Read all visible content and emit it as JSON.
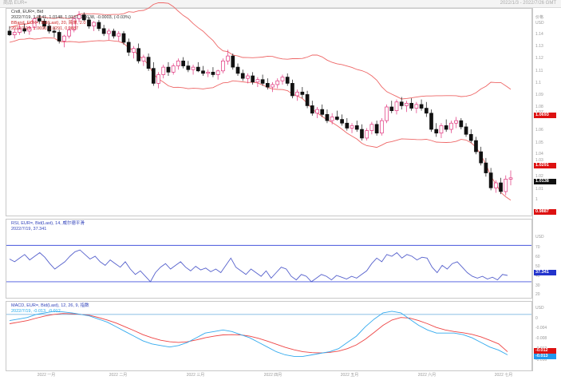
{
  "window": {
    "left_title": "商品 EUR=",
    "right_title": "2022/1/3 - 2022/7/26 GMT"
  },
  "main_panel": {
    "legend": [
      {
        "text": "Cndl, EUR=, Bid",
        "color": "#333333"
      },
      {
        "text": "2022/7/19, 1.0141, 1.0148, 1.0137, 1.0138, -0.0003, (-0.03%)",
        "color": "#333333"
      },
      {
        "text": "BBand, EUR=, Bid(Last), 20, 简单, 2.0",
        "color": "#cc2222"
      },
      {
        "text": "2022/7/19, 1.0693, 1.0291, 0.9887",
        "color": "#cc2222"
      }
    ],
    "axis_header": "价格",
    "axis_unit": "USD",
    "axis_labels": [
      "1.14",
      "1.13",
      "1.12",
      "1.11",
      "1.1",
      "1.09",
      "1.08",
      "1.07",
      "1.06",
      "1.05",
      "1.04",
      "1.03",
      "1.02",
      "1.01",
      "1"
    ],
    "price_tags": [
      {
        "text": "1.0693",
        "color": "#dd1111",
        "price": 1.0693
      },
      {
        "text": "1.0291",
        "color": "#dd1111",
        "price": 1.0291
      },
      {
        "text": "1.0138",
        "color": "#111111",
        "price": 1.0138
      },
      {
        "text": "0.9887",
        "color": "#dd1111",
        "price": 0.9887
      }
    ]
  },
  "rsi_panel": {
    "legend": [
      {
        "text": "RSI, EUR=, Bid(Last), 14, 威尔德平滑",
        "color": "#3344bb"
      },
      {
        "text": "2022/7/19, 37.341",
        "color": "#3344bb"
      }
    ],
    "axis_unit": "USD",
    "axis_labels": [
      "70",
      "60",
      "50",
      "40",
      "30",
      "20"
    ],
    "value_tag": {
      "text": "37.341",
      "color": "#2233cc"
    },
    "upper_line": 70,
    "lower_line": 30
  },
  "macd_panel": {
    "legend": [
      {
        "text": "MACD, EUR=, Bid(Last), 12, 26, 9, 指数",
        "color": "#3344bb"
      },
      {
        "text": "2022/7/19, -0.013, -0.012",
        "color": "#22aaee"
      }
    ],
    "axis_unit": "USD",
    "axis_labels": [
      "0",
      "-0.004",
      "-0.008",
      "-0.012",
      "-0.016"
    ],
    "value_tags": [
      {
        "text": "-0.012",
        "color": "#dd1111"
      },
      {
        "text": "-0.013",
        "color": "#2299ee"
      }
    ]
  },
  "x_axis": {
    "labels": [
      "2022 一月",
      "2022 二月",
      "2022 三月",
      "2022 四月",
      "2022 五月",
      "2022 六月",
      "2022 七月"
    ]
  },
  "chart_data": [
    {
      "type": "candlestick",
      "title": "Cndl, EUR=, Bid",
      "ylim": [
        0.985,
        1.148
      ],
      "series": [
        {
          "name": "Candles",
          "values": [
            [
              1.132,
              1.136,
              1.128,
              1.129
            ],
            [
              1.129,
              1.134,
              1.126,
              1.131
            ],
            [
              1.131,
              1.137,
              1.129,
              1.134
            ],
            [
              1.134,
              1.138,
              1.13,
              1.132
            ],
            [
              1.132,
              1.136,
              1.129,
              1.135
            ],
            [
              1.135,
              1.144,
              1.133,
              1.142
            ],
            [
              1.142,
              1.145,
              1.138,
              1.14
            ],
            [
              1.14,
              1.142,
              1.134,
              1.136
            ],
            [
              1.136,
              1.139,
              1.13,
              1.132
            ],
            [
              1.132,
              1.135,
              1.127,
              1.131
            ],
            [
              1.131,
              1.133,
              1.122,
              1.124
            ],
            [
              1.124,
              1.129,
              1.119,
              1.128
            ],
            [
              1.128,
              1.136,
              1.126,
              1.133
            ],
            [
              1.133,
              1.144,
              1.131,
              1.142
            ],
            [
              1.142,
              1.148,
              1.139,
              1.145
            ],
            [
              1.145,
              1.147,
              1.14,
              1.141
            ],
            [
              1.141,
              1.143,
              1.134,
              1.136
            ],
            [
              1.136,
              1.14,
              1.132,
              1.139
            ],
            [
              1.139,
              1.141,
              1.132,
              1.134
            ],
            [
              1.134,
              1.137,
              1.128,
              1.13
            ],
            [
              1.13,
              1.134,
              1.125,
              1.132
            ],
            [
              1.132,
              1.134,
              1.126,
              1.128
            ],
            [
              1.128,
              1.132,
              1.124,
              1.13
            ],
            [
              1.13,
              1.132,
              1.121,
              1.123
            ],
            [
              1.123,
              1.126,
              1.112,
              1.115
            ],
            [
              1.115,
              1.12,
              1.11,
              1.118
            ],
            [
              1.118,
              1.122,
              1.106,
              1.108
            ],
            [
              1.108,
              1.113,
              1.104,
              1.111
            ],
            [
              1.111,
              1.114,
              1.1,
              1.102
            ],
            [
              1.102,
              1.107,
              1.088,
              1.09
            ],
            [
              1.09,
              1.099,
              1.086,
              1.097
            ],
            [
              1.097,
              1.105,
              1.094,
              1.103
            ],
            [
              1.103,
              1.107,
              1.096,
              1.099
            ],
            [
              1.099,
              1.106,
              1.097,
              1.104
            ],
            [
              1.104,
              1.11,
              1.101,
              1.108
            ],
            [
              1.108,
              1.111,
              1.102,
              1.104
            ],
            [
              1.104,
              1.108,
              1.099,
              1.101
            ],
            [
              1.101,
              1.105,
              1.097,
              1.103
            ],
            [
              1.103,
              1.107,
              1.099,
              1.1
            ],
            [
              1.1,
              1.104,
              1.096,
              1.098
            ],
            [
              1.098,
              1.101,
              1.095,
              1.099
            ],
            [
              1.099,
              1.103,
              1.095,
              1.097
            ],
            [
              1.097,
              1.101,
              1.093,
              1.1
            ],
            [
              1.1,
              1.11,
              1.098,
              1.108
            ],
            [
              1.108,
              1.117,
              1.105,
              1.112
            ],
            [
              1.112,
              1.114,
              1.101,
              1.103
            ],
            [
              1.103,
              1.106,
              1.096,
              1.098
            ],
            [
              1.098,
              1.101,
              1.092,
              1.094
            ],
            [
              1.094,
              1.098,
              1.09,
              1.096
            ],
            [
              1.096,
              1.099,
              1.089,
              1.091
            ],
            [
              1.091,
              1.095,
              1.087,
              1.093
            ],
            [
              1.093,
              1.097,
              1.088,
              1.09
            ],
            [
              1.09,
              1.094,
              1.085,
              1.087
            ],
            [
              1.087,
              1.091,
              1.083,
              1.089
            ],
            [
              1.089,
              1.094,
              1.086,
              1.092
            ],
            [
              1.092,
              1.097,
              1.089,
              1.095
            ],
            [
              1.095,
              1.098,
              1.088,
              1.09
            ],
            [
              1.09,
              1.093,
              1.078,
              1.08
            ],
            [
              1.08,
              1.085,
              1.076,
              1.083
            ],
            [
              1.083,
              1.087,
              1.078,
              1.081
            ],
            [
              1.081,
              1.084,
              1.07,
              1.072
            ],
            [
              1.072,
              1.076,
              1.064,
              1.066
            ],
            [
              1.066,
              1.071,
              1.062,
              1.069
            ],
            [
              1.069,
              1.073,
              1.063,
              1.065
            ],
            [
              1.065,
              1.069,
              1.058,
              1.06
            ],
            [
              1.06,
              1.066,
              1.057,
              1.063
            ],
            [
              1.063,
              1.068,
              1.06,
              1.061
            ],
            [
              1.061,
              1.065,
              1.056,
              1.058
            ],
            [
              1.058,
              1.062,
              1.052,
              1.054
            ],
            [
              1.054,
              1.058,
              1.05,
              1.056
            ],
            [
              1.056,
              1.06,
              1.051,
              1.053
            ],
            [
              1.053,
              1.057,
              1.044,
              1.046
            ],
            [
              1.046,
              1.054,
              1.044,
              1.052
            ],
            [
              1.052,
              1.059,
              1.049,
              1.057
            ],
            [
              1.057,
              1.06,
              1.048,
              1.05
            ],
            [
              1.05,
              1.062,
              1.048,
              1.06
            ],
            [
              1.06,
              1.073,
              1.058,
              1.071
            ],
            [
              1.071,
              1.076,
              1.066,
              1.068
            ],
            [
              1.068,
              1.077,
              1.065,
              1.075
            ],
            [
              1.075,
              1.079,
              1.069,
              1.072
            ],
            [
              1.072,
              1.076,
              1.067,
              1.074
            ],
            [
              1.074,
              1.078,
              1.068,
              1.07
            ],
            [
              1.07,
              1.075,
              1.066,
              1.073
            ],
            [
              1.073,
              1.077,
              1.068,
              1.07
            ],
            [
              1.07,
              1.075,
              1.063,
              1.066
            ],
            [
              1.066,
              1.069,
              1.051,
              1.053
            ],
            [
              1.053,
              1.058,
              1.047,
              1.05
            ],
            [
              1.05,
              1.058,
              1.046,
              1.056
            ],
            [
              1.056,
              1.061,
              1.051,
              1.053
            ],
            [
              1.053,
              1.06,
              1.05,
              1.058
            ],
            [
              1.058,
              1.063,
              1.054,
              1.06
            ],
            [
              1.06,
              1.062,
              1.053,
              1.055
            ],
            [
              1.055,
              1.058,
              1.047,
              1.049
            ],
            [
              1.049,
              1.053,
              1.042,
              1.044
            ],
            [
              1.044,
              1.047,
              1.033,
              1.035
            ],
            [
              1.035,
              1.039,
              1.024,
              1.026
            ],
            [
              1.026,
              1.03,
              1.015,
              1.018
            ],
            [
              1.018,
              1.022,
              1.004,
              1.006
            ],
            [
              1.006,
              1.012,
              1.002,
              1.01
            ],
            [
              1.01,
              1.014,
              1.001,
              1.003
            ],
            [
              1.003,
              1.016,
              1.0,
              1.013
            ],
            [
              1.013,
              1.02,
              1.008,
              1.014
            ]
          ]
        }
      ],
      "bands": {
        "upper_line_color": "#ee5555",
        "lower_line_color": "#ee5555"
      }
    },
    {
      "type": "line",
      "title": "RSI, EUR=, Bid(Last), 14",
      "ylim": [
        15,
        80
      ],
      "series": [
        {
          "name": "RSI",
          "values": [
            55,
            52,
            56,
            60,
            54,
            58,
            62,
            57,
            50,
            44,
            48,
            52,
            58,
            63,
            65,
            60,
            55,
            58,
            52,
            48,
            54,
            50,
            46,
            52,
            44,
            38,
            42,
            36,
            30,
            40,
            46,
            50,
            44,
            48,
            52,
            46,
            42,
            47,
            43,
            45,
            41,
            44,
            40,
            48,
            56,
            46,
            42,
            38,
            44,
            40,
            36,
            42,
            34,
            40,
            46,
            44,
            36,
            32,
            38,
            36,
            30,
            34,
            38,
            36,
            32,
            37,
            35,
            33,
            36,
            34,
            38,
            42,
            50,
            56,
            52,
            60,
            58,
            62,
            56,
            60,
            58,
            54,
            57,
            56,
            46,
            40,
            48,
            44,
            50,
            52,
            46,
            40,
            36,
            34,
            36,
            33,
            35,
            32,
            38,
            37
          ]
        }
      ]
    },
    {
      "type": "line",
      "title": "MACD, EUR=, Bid(Last), 12, 26, 9",
      "ylim": [
        -0.0175,
        0.0015
      ],
      "series": [
        {
          "name": "MACD",
          "values": [
            -0.002,
            -0.0015,
            -0.001,
            0,
            0.0005,
            0.001,
            0.0008,
            0.0005,
            0,
            -0.0005,
            -0.0015,
            -0.0025,
            -0.004,
            -0.0055,
            -0.007,
            -0.0085,
            -0.0095,
            -0.01,
            -0.0105,
            -0.01,
            -0.009,
            -0.0075,
            -0.006,
            -0.0055,
            -0.005,
            -0.0055,
            -0.0065,
            -0.0075,
            -0.009,
            -0.0105,
            -0.012,
            -0.013,
            -0.0135,
            -0.0135,
            -0.013,
            -0.0125,
            -0.012,
            -0.011,
            -0.009,
            -0.007,
            -0.004,
            -0.0015,
            0.0005,
            0.001,
            0.0005,
            -0.0015,
            -0.0035,
            -0.005,
            -0.006,
            -0.006,
            -0.006,
            -0.0065,
            -0.0075,
            -0.009,
            -0.0105,
            -0.0115,
            -0.013
          ]
        },
        {
          "name": "Signal",
          "values": [
            -0.003,
            -0.0025,
            -0.002,
            -0.0012,
            -0.0005,
            0,
            0.0003,
            0.0002,
            0,
            -0.0003,
            -0.001,
            -0.0018,
            -0.0028,
            -0.004,
            -0.0052,
            -0.0065,
            -0.0075,
            -0.0083,
            -0.0088,
            -0.009,
            -0.0088,
            -0.0082,
            -0.0075,
            -0.007,
            -0.0066,
            -0.0065,
            -0.0066,
            -0.007,
            -0.0077,
            -0.0086,
            -0.0096,
            -0.0106,
            -0.0114,
            -0.012,
            -0.0123,
            -0.0124,
            -0.0122,
            -0.0118,
            -0.011,
            -0.0098,
            -0.008,
            -0.0058,
            -0.0035,
            -0.0018,
            -0.001,
            -0.0012,
            -0.002,
            -0.003,
            -0.0042,
            -0.005,
            -0.0055,
            -0.0059,
            -0.0064,
            -0.0072,
            -0.0083,
            -0.0095,
            -0.012
          ]
        }
      ]
    }
  ]
}
